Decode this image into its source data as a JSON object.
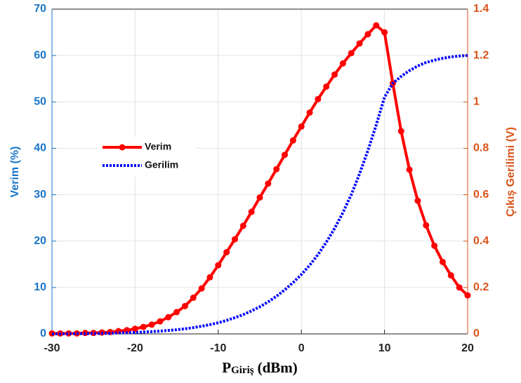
{
  "chart_data": {
    "type": "line",
    "x_label": "P",
    "x_label_subscript": "Giriş",
    "x_label_unit": "(dBm)",
    "y_label": "Verim (%)",
    "y2_label": "Çıkış Gerilimi (V)",
    "x": [
      -30,
      -29,
      -28,
      -27,
      -26,
      -25,
      -24,
      -23,
      -22,
      -21,
      -20,
      -19,
      -18,
      -17,
      -16,
      -15,
      -14,
      -13,
      -12,
      -11,
      -10,
      -9,
      -8,
      -7,
      -6,
      -5,
      -4,
      -3,
      -2,
      -1,
      0,
      1,
      2,
      3,
      4,
      5,
      6,
      7,
      8,
      9,
      10,
      11,
      12,
      13,
      14,
      15,
      16,
      17,
      18,
      19,
      20
    ],
    "series": [
      {
        "name": "Verim",
        "color": "#ff0000",
        "axis": "y",
        "style": "solid",
        "markers": true,
        "values": [
          0.1,
          0.1,
          0.1,
          0.1,
          0.2,
          0.2,
          0.3,
          0.4,
          0.6,
          0.8,
          1.1,
          1.5,
          2.0,
          2.7,
          3.6,
          4.7,
          6.0,
          7.8,
          9.8,
          12.2,
          14.8,
          17.6,
          20.4,
          23.3,
          26.3,
          29.4,
          32.4,
          35.5,
          38.6,
          41.7,
          44.7,
          47.7,
          50.6,
          53.3,
          55.9,
          58.3,
          60.5,
          62.6,
          64.6,
          66.5,
          65.0,
          54.0,
          43.7,
          35.4,
          28.7,
          23.4,
          19.0,
          15.5,
          12.6,
          10.0,
          8.3
        ]
      },
      {
        "name": "Gerilim",
        "color": "#0000ff",
        "axis": "y2",
        "style": "dotted",
        "markers": false,
        "values": [
          0,
          0,
          0.001,
          0.001,
          0.001,
          0.002,
          0.002,
          0.003,
          0.004,
          0.005,
          0.006,
          0.008,
          0.01,
          0.012,
          0.015,
          0.018,
          0.022,
          0.027,
          0.033,
          0.04,
          0.048,
          0.058,
          0.07,
          0.083,
          0.099,
          0.117,
          0.138,
          0.162,
          0.19,
          0.221,
          0.256,
          0.296,
          0.342,
          0.395,
          0.455,
          0.523,
          0.6,
          0.69,
          0.79,
          0.9,
          1.02,
          1.08,
          1.11,
          1.135,
          1.155,
          1.17,
          1.18,
          1.188,
          1.194,
          1.198,
          1.2
        ]
      }
    ],
    "xlim": [
      -30,
      20
    ],
    "xticks": [
      -30,
      -20,
      -10,
      0,
      10,
      20
    ],
    "ylim": [
      0,
      70
    ],
    "yticks": [
      0,
      10,
      20,
      30,
      40,
      50,
      60,
      70
    ],
    "y2lim": [
      0,
      1.4
    ],
    "y2ticks": [
      0,
      0.2,
      0.4,
      0.6,
      0.8,
      1,
      1.2,
      1.4
    ],
    "y_color": "#1a75c8",
    "y2_color": "#d95319",
    "grid": true,
    "legend": "left"
  }
}
